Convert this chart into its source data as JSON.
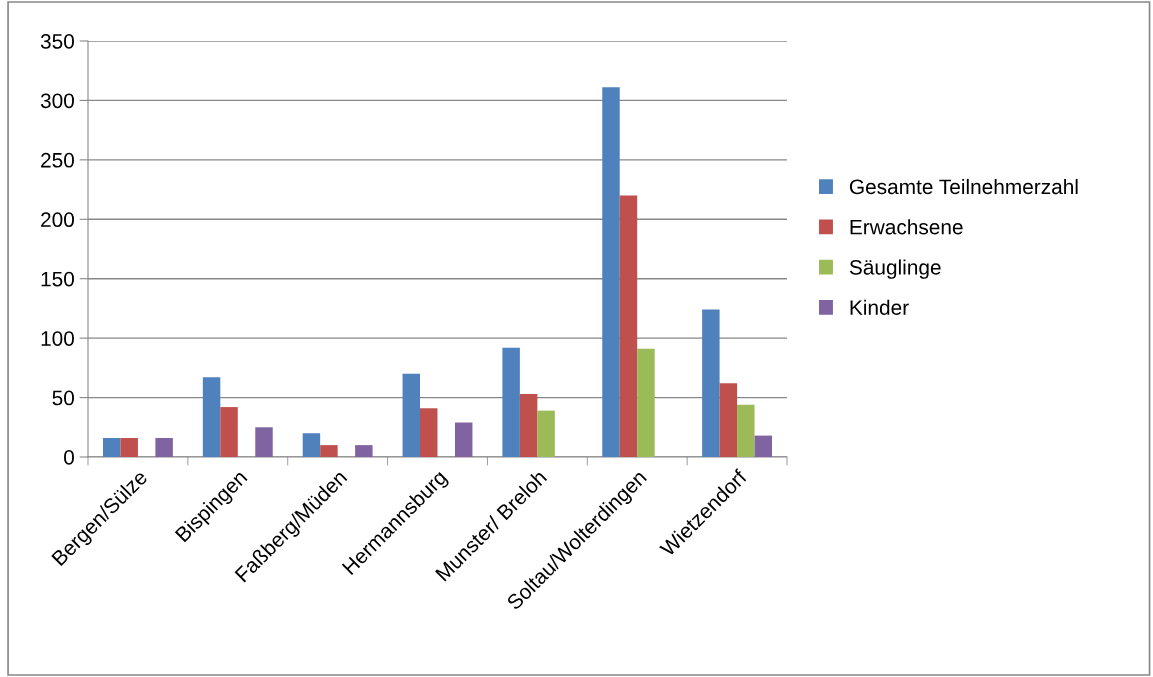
{
  "chart_data": {
    "type": "bar",
    "categories": [
      "Bergen/Sülze",
      "Bispingen",
      "Faßberg/Müden",
      "Hermannsburg",
      "Munster/ Breloh",
      "Soltau/Wolterdingen",
      "Wietzendorf"
    ],
    "series": [
      {
        "name": "Gesamte Teilnehmerzahl",
        "color": "#4f81bd",
        "values": [
          16,
          67,
          20,
          70,
          92,
          311,
          124
        ]
      },
      {
        "name": "Erwachsene",
        "color": "#c0504d",
        "values": [
          16,
          42,
          10,
          41,
          53,
          220,
          62
        ]
      },
      {
        "name": "Säuglinge",
        "color": "#9bbb59",
        "values": [
          0,
          0,
          0,
          0,
          39,
          91,
          44
        ]
      },
      {
        "name": "Kinder",
        "color": "#8064a2",
        "values": [
          16,
          25,
          10,
          29,
          0,
          0,
          18
        ]
      }
    ],
    "ylim": [
      0,
      350
    ],
    "yticks": [
      0,
      50,
      100,
      150,
      200,
      250,
      300,
      350
    ],
    "grid": "y",
    "legend": "right"
  }
}
